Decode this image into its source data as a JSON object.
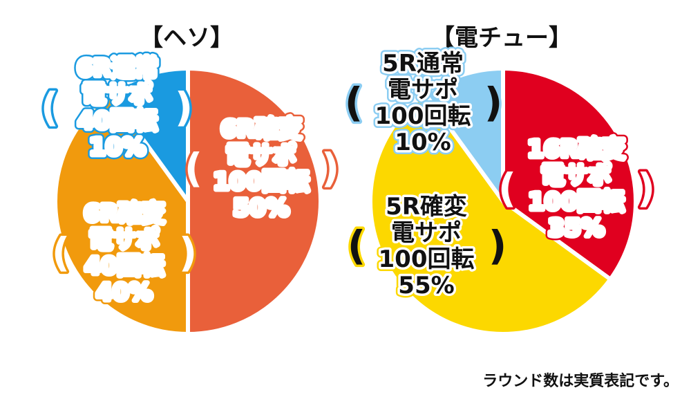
{
  "chart_data": [
    {
      "type": "pie",
      "title": "【ヘソ】",
      "start_angle_deg": 0,
      "direction": "clockwise",
      "slices": [
        {
          "lines": [
            "6R確変",
            "電サポ",
            "100回転",
            "50%"
          ],
          "value": 50,
          "color": "#e9603a",
          "text_color": "#ffffff",
          "outline_color": "#e9603a"
        },
        {
          "lines": [
            "6R確変",
            "電サポ",
            "40回転",
            "40%"
          ],
          "value": 40,
          "color": "#f19a0d",
          "text_color": "#ffffff",
          "outline_color": "#f19a0d"
        },
        {
          "lines": [
            "6R通常",
            "電サポ",
            "40回転",
            "10%"
          ],
          "value": 10,
          "color": "#1a9ae0",
          "text_color": "#ffffff",
          "outline_color": "#1a9ae0"
        }
      ]
    },
    {
      "type": "pie",
      "title": "【電チュー】",
      "start_angle_deg": 0,
      "direction": "clockwise",
      "slices": [
        {
          "lines": [
            "16R確変",
            "電サポ",
            "100回転",
            "35%"
          ],
          "value": 35,
          "color": "#e0001f",
          "text_color": "#ffffff",
          "outline_color": "#e0001f"
        },
        {
          "lines": [
            "5R確変",
            "電サポ",
            "100回転",
            "55%"
          ],
          "value": 55,
          "color": "#fcd800",
          "text_color": "#111111",
          "outline_color": "#fcd800"
        },
        {
          "lines": [
            "5R通常",
            "電サポ",
            "100回転",
            "10%"
          ],
          "value": 10,
          "color": "#8ccdf2",
          "text_color": "#111111",
          "outline_color": "#8ccdf2"
        }
      ]
    }
  ],
  "footnote": "ラウンド数は実質表記です。"
}
